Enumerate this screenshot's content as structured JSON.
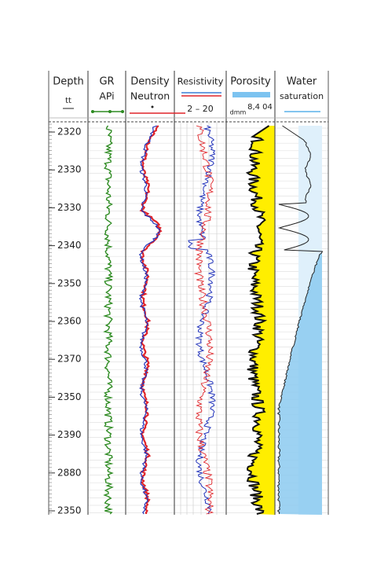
{
  "columns": [
    {
      "title": "Depth",
      "sub": "tt"
    },
    {
      "title": "GR",
      "sub": "APi"
    },
    {
      "title": "Density",
      "sub": "Neutron"
    },
    {
      "title": "Resistivity",
      "scale": "2  –  20"
    },
    {
      "title": "Porosity",
      "scale": "8,4 04",
      "unit": "dmm"
    },
    {
      "title": "Water",
      "sub": "saturation"
    }
  ],
  "depth_labels": [
    "2320",
    "2330",
    "2330",
    "2340",
    "2350",
    "2360",
    "2370",
    "2350",
    "2390",
    "2880",
    "2350"
  ]
}
